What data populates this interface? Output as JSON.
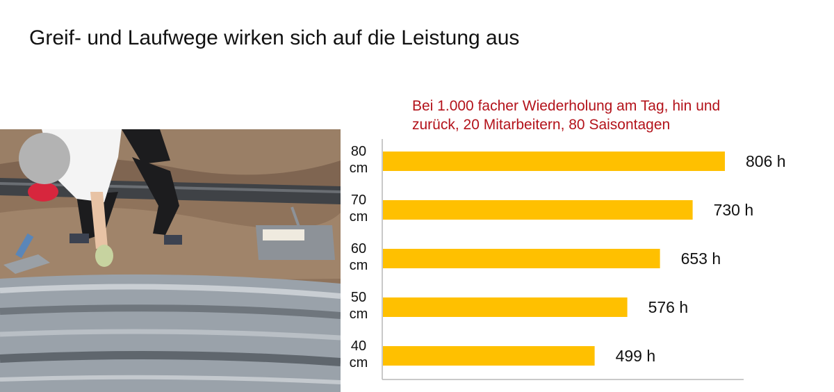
{
  "page": {
    "title": "Greif- und Laufwege wirken sich auf die Leistung aus"
  },
  "colors": {
    "bar": "#ffc000",
    "subtitle": "#b3121a",
    "axis": "#b7b7b7",
    "text": "#111111"
  },
  "chart_data": {
    "type": "bar",
    "orientation": "horizontal",
    "title": "",
    "subtitle": "Bei 1.000 facher Wiederholung am Tag, hin und zurück, 20 Mitarbeitern, 80 Saisontagen",
    "categories": [
      [
        "80",
        "cm"
      ],
      [
        "70",
        "cm"
      ],
      [
        "60",
        "cm"
      ],
      [
        "50",
        "cm"
      ],
      [
        "40",
        "cm"
      ]
    ],
    "values": [
      806,
      730,
      653,
      576,
      499
    ],
    "value_labels": [
      "806 h",
      "730 h",
      "653 h",
      "576 h",
      "499 h"
    ],
    "unit": "h",
    "xlim": [
      0,
      850
    ],
    "grid": false,
    "legend": "none"
  }
}
